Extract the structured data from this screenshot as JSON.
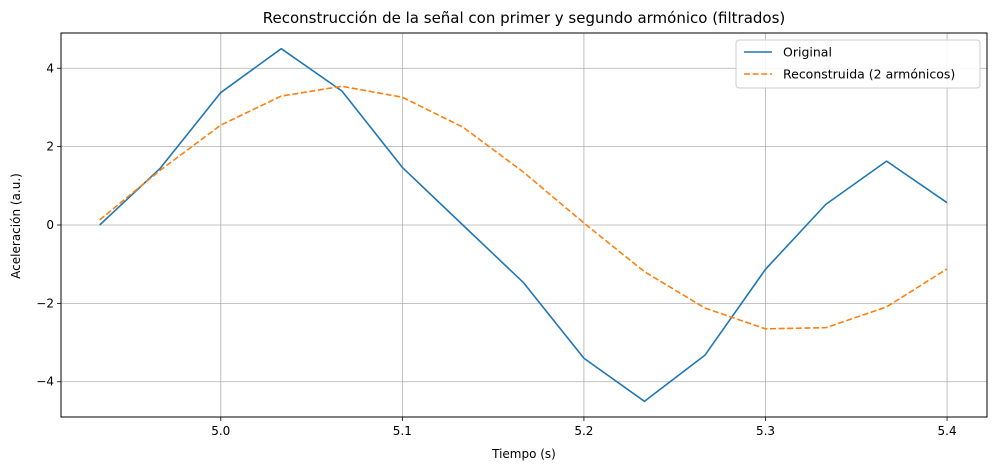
{
  "chart_data": {
    "type": "line",
    "title": "Reconstrucción de la señal con primer y segundo armónico (filtrados)",
    "xlabel": "Tiempo (s)",
    "ylabel": "Aceleración (a.u.)",
    "xlim": [
      4.912,
      5.422
    ],
    "ylim": [
      -4.9,
      4.9
    ],
    "xticks": [
      5.0,
      5.1,
      5.2,
      5.3,
      5.4
    ],
    "xtick_labels": [
      "5.0",
      "5.1",
      "5.2",
      "5.3",
      "5.4"
    ],
    "yticks": [
      -4,
      -2,
      0,
      2,
      4
    ],
    "ytick_labels": [
      "−4",
      "−2",
      "0",
      "2",
      "4"
    ],
    "grid": true,
    "legend_position": "top-right",
    "x": [
      4.9333,
      4.9667,
      5.0,
      5.0333,
      5.0667,
      5.1,
      5.1333,
      5.1667,
      5.2,
      5.2333,
      5.2667,
      5.3,
      5.3333,
      5.3667,
      5.4
    ],
    "series": [
      {
        "name": "Original",
        "color": "#1f77b4",
        "style": "solid",
        "values": [
          0.0,
          1.45,
          3.38,
          4.5,
          3.42,
          1.47,
          0.0,
          -1.47,
          -3.4,
          -4.5,
          -3.32,
          -1.13,
          0.53,
          1.63,
          0.57
        ]
      },
      {
        "name": "Reconstruida (2 armónicos)",
        "color": "#ff7f0e",
        "style": "dashed",
        "values": [
          0.13,
          1.4,
          2.55,
          3.29,
          3.54,
          3.26,
          2.5,
          1.35,
          0.05,
          -1.19,
          -2.12,
          -2.65,
          -2.62,
          -2.09,
          -1.12
        ]
      }
    ]
  }
}
